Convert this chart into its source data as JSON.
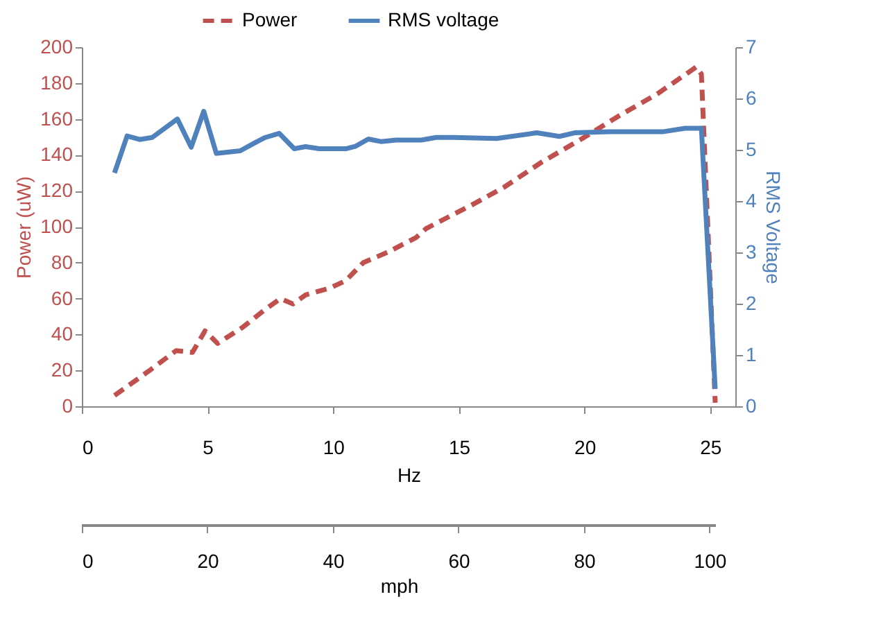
{
  "chart_data": {
    "type": "line",
    "xlabel": "Hz",
    "ylabel": "Power (uW)",
    "y2label": "RMS Voltage",
    "x2label": "mph",
    "xlim": [
      0,
      26
    ],
    "xticks": [
      0,
      5,
      10,
      15,
      20,
      25
    ],
    "ylim": [
      0,
      200
    ],
    "yticks": [
      0,
      20,
      40,
      60,
      80,
      100,
      120,
      140,
      160,
      180,
      200
    ],
    "y2lim": [
      0,
      7
    ],
    "y2ticks": [
      0,
      1,
      2,
      3,
      4,
      5,
      6,
      7
    ],
    "x2lim": [
      0,
      101
    ],
    "x2ticks": [
      0,
      20,
      40,
      60,
      80,
      100
    ],
    "legend": "top",
    "grid": false,
    "marker": "none",
    "series": [
      {
        "name": "Power",
        "color": "#c0504d",
        "line_style": "dashed",
        "x": [
          1.3,
          1.9,
          2.7,
          3.75,
          4.4,
          4.9,
          5.4,
          6.4,
          7.3,
          7.9,
          8.4,
          8.9,
          9.9,
          10.5,
          11.2,
          12.2,
          13.3,
          13.7,
          14.8,
          15.5,
          16.8,
          18.3,
          19.9,
          21.4,
          22.9,
          24.45,
          24.65,
          25.2
        ],
        "values": [
          6,
          12,
          20,
          31,
          30,
          42,
          35,
          44,
          54,
          60,
          57,
          62,
          66,
          70,
          80,
          86,
          94,
          99,
          107,
          112,
          122,
          136,
          149,
          162,
          174,
          189,
          185,
          2
        ]
      },
      {
        "name": "RMS voltage",
        "color": "#4f81bd",
        "line_style": "solid",
        "axis": "y2",
        "x": [
          1.3,
          1.8,
          2.3,
          2.8,
          3.8,
          4.35,
          4.85,
          5.35,
          6.3,
          6.9,
          7.3,
          7.85,
          8.45,
          8.9,
          9.45,
          10.5,
          10.9,
          11.4,
          11.9,
          12.5,
          13.5,
          14.1,
          14.8,
          16.5,
          18.1,
          19.0,
          19.6,
          21.0,
          23.1,
          24.0,
          24.65,
          25.2
        ],
        "values": [
          4.55,
          5.27,
          5.2,
          5.24,
          5.6,
          5.05,
          5.75,
          4.93,
          4.98,
          5.14,
          5.24,
          5.32,
          5.02,
          5.06,
          5.02,
          5.02,
          5.07,
          5.21,
          5.16,
          5.19,
          5.19,
          5.24,
          5.24,
          5.22,
          5.33,
          5.26,
          5.33,
          5.35,
          5.35,
          5.42,
          5.42,
          0.34
        ]
      }
    ]
  }
}
